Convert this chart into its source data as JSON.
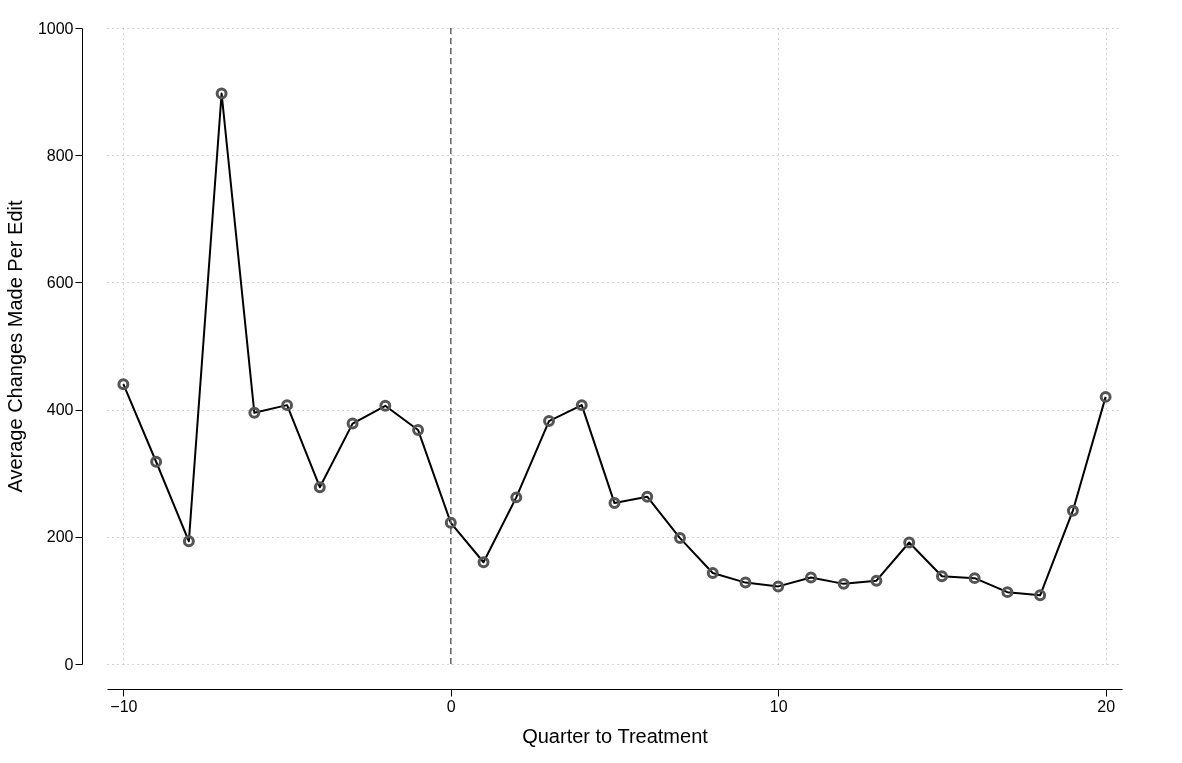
{
  "chart_data": {
    "type": "line",
    "xlabel": "Quarter to Treatment",
    "ylabel": "Average Changes Made Per Edit",
    "x": [
      -10,
      -9,
      -8,
      -7,
      -6,
      -5,
      -4,
      -3,
      -2,
      -1,
      0,
      1,
      2,
      3,
      4,
      5,
      6,
      7,
      8,
      9,
      10,
      11,
      12,
      13,
      14,
      15,
      16,
      17,
      18,
      19,
      20
    ],
    "series": [
      {
        "color": "#000000",
        "values": [
          440,
          318,
          193,
          897,
          395,
          407,
          278,
          378,
          406,
          368,
          222,
          160,
          262,
          382,
          407,
          253,
          263,
          198,
          143,
          128,
          122,
          136,
          126,
          131,
          191,
          138,
          135,
          113,
          108,
          241,
          420
        ]
      }
    ],
    "xlim": [
      -10.5,
      20.5
    ],
    "ylim": [
      0,
      1000
    ],
    "xticks": [
      -10,
      0,
      10,
      20
    ],
    "yticks": [
      0,
      200,
      400,
      600,
      800,
      1000
    ],
    "grid": true,
    "marker": "circle",
    "line_style": "solid",
    "ref_lines": [
      {
        "axis": "x",
        "value": 0,
        "color": "#666666",
        "line_style": "dashed"
      }
    ]
  }
}
